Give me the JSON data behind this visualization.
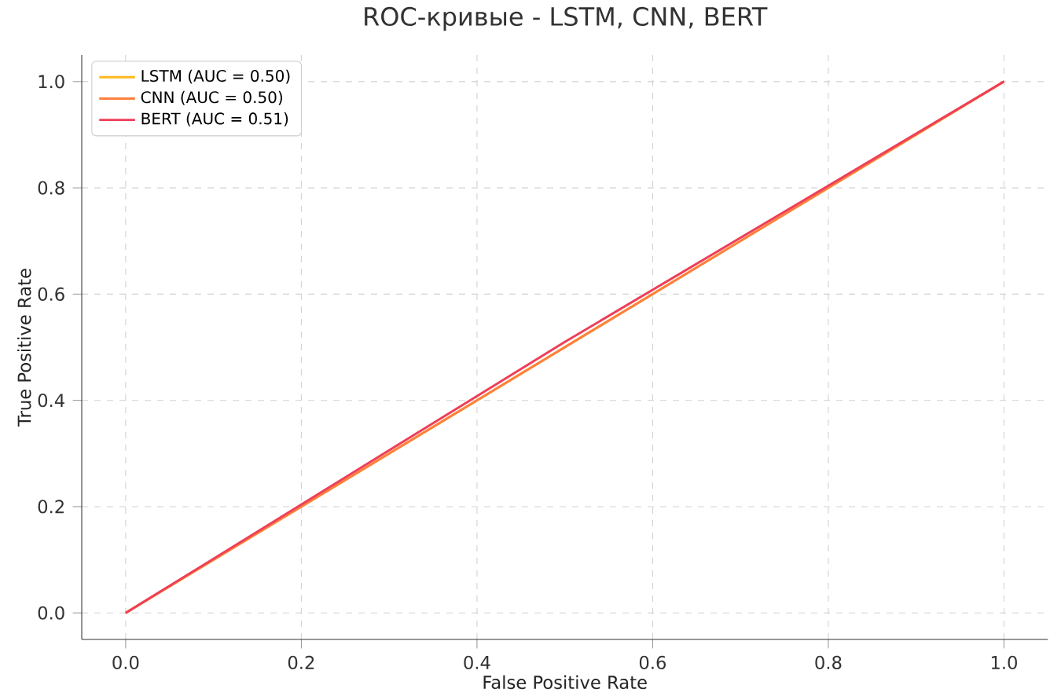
{
  "chart_data": {
    "type": "line",
    "title": "ROC-кривые - LSTM, CNN, BERT",
    "xlabel": "False Positive Rate",
    "ylabel": "True Positive Rate",
    "series": [
      {
        "name": "LSTM (AUC = 0.50)",
        "color": "#ffb81c",
        "x": [
          0,
          1
        ],
        "values": [
          0,
          1
        ]
      },
      {
        "name": "CNN (AUC = 0.50)",
        "color": "#ff7f3f",
        "x": [
          0,
          1
        ],
        "values": [
          0,
          1
        ]
      },
      {
        "name": "BERT (AUC = 0.51)",
        "color": "#ee3e58",
        "x": [
          0,
          0.5,
          1
        ],
        "values": [
          0,
          0.51,
          1
        ]
      }
    ],
    "xlim": [
      -0.05,
      1.05
    ],
    "ylim": [
      -0.05,
      1.05
    ],
    "xticks": [
      {
        "value": 0,
        "label": "0.0"
      },
      {
        "value": 0.2,
        "label": "0.2"
      },
      {
        "value": 0.4,
        "label": "0.4"
      },
      {
        "value": 0.6,
        "label": "0.6"
      },
      {
        "value": 0.8,
        "label": "0.8"
      },
      {
        "value": 1,
        "label": "1.0"
      }
    ],
    "yticks": [
      {
        "value": 0,
        "label": "0.0"
      },
      {
        "value": 0.2,
        "label": "0.2"
      },
      {
        "value": 0.4,
        "label": "0.4"
      },
      {
        "value": 0.6,
        "label": "0.6"
      },
      {
        "value": 0.8,
        "label": "0.8"
      },
      {
        "value": 1,
        "label": "1.0"
      }
    ],
    "grid": true,
    "legend": "top left",
    "marker": "none",
    "line_style": "solid"
  }
}
